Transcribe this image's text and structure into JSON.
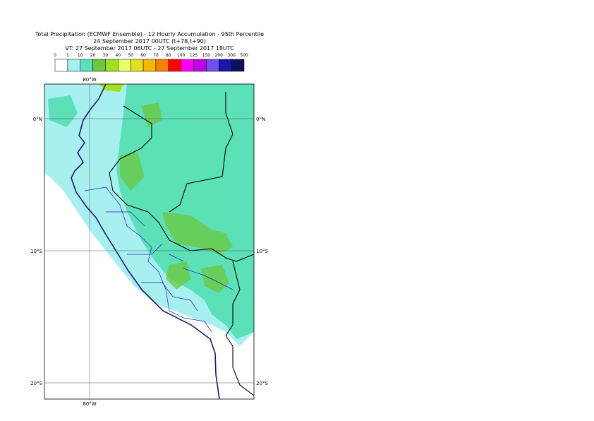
{
  "header": {
    "title": "Total Precipitation (ECMWF Ensemble) - 12 Hourly Accumulation - 95th Percentile",
    "base_time": "24 September 2017 00UTC (t+78,t+90)",
    "valid_time": "VT: 27 September 2017 06UTC - 27 September 2017 18UTC"
  },
  "legend": {
    "thresholds": [
      "0",
      "1",
      "10",
      "20",
      "30",
      "40",
      "50",
      "60",
      "70",
      "80",
      "100",
      "125",
      "150",
      "200",
      "300",
      "500"
    ],
    "colors": [
      "#ffffff",
      "#a8f0f0",
      "#5ce0b8",
      "#6cc83c",
      "#a0e020",
      "#e8fc6c",
      "#e0e020",
      "#f8b800",
      "#f88000",
      "#ff0000",
      "#ff00ff",
      "#c000e0",
      "#7050f0",
      "#1818a8",
      "#101060"
    ]
  },
  "map": {
    "lon_labels": [
      "80°W"
    ],
    "lat_labels": [
      "0°N",
      "10°S",
      "20°S"
    ]
  }
}
